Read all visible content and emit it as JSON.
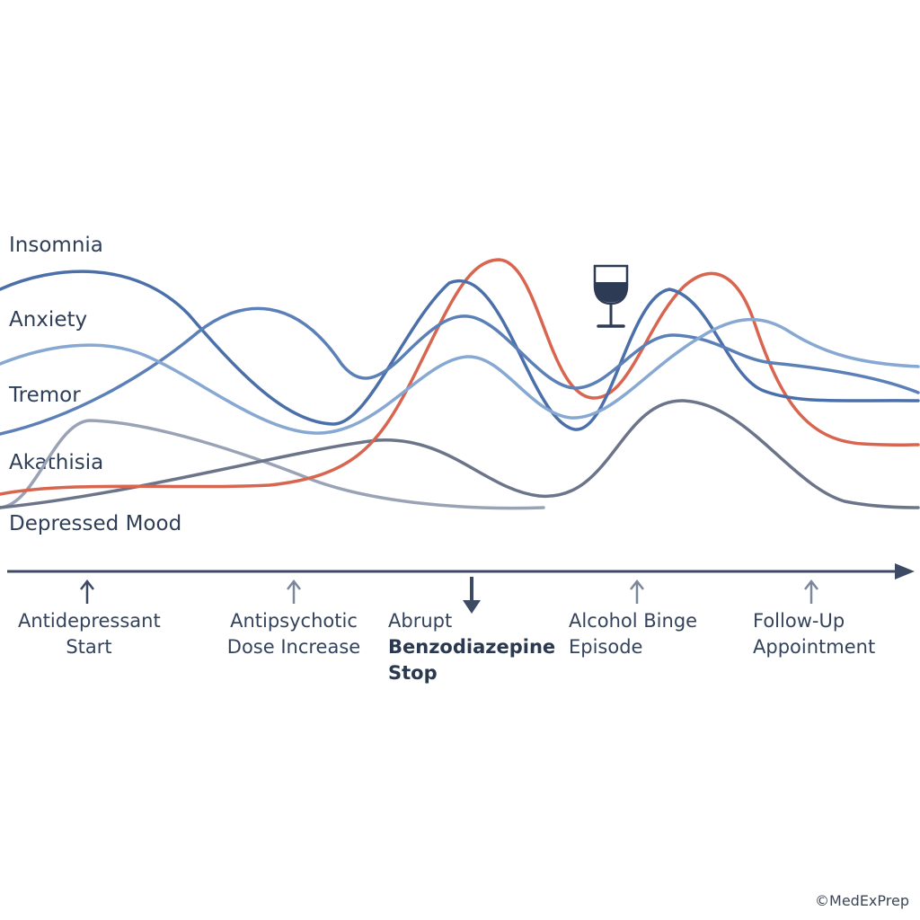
{
  "symptoms": [
    {
      "id": "insomnia",
      "label": "Insomnia"
    },
    {
      "id": "anxiety",
      "label": "Anxiety"
    },
    {
      "id": "tremor",
      "label": "Tremor"
    },
    {
      "id": "akathisia",
      "label": "Akathisia"
    },
    {
      "id": "depressed_mood",
      "label": "Depressed Mood"
    }
  ],
  "events": [
    {
      "id": "antidepressant_start",
      "lines": [
        "Antidepressant",
        "Start"
      ],
      "emphasis": false
    },
    {
      "id": "antipsychotic_dose_increase",
      "lines": [
        "Antipsychotic",
        "Dose Increase"
      ],
      "emphasis": false
    },
    {
      "id": "abrupt_benzodiazepine_stop",
      "lines": [
        "Abrupt",
        "Benzodiazepine",
        "Stop"
      ],
      "emphasis": true
    },
    {
      "id": "alcohol_binge_episode",
      "lines": [
        "Alcohol Binge",
        "Episode"
      ],
      "emphasis": false
    },
    {
      "id": "follow_up_appointment",
      "lines": [
        "Follow-Up",
        "Appointment"
      ],
      "emphasis": false
    }
  ],
  "icons": {
    "alcohol": "wine-glass-icon",
    "timeline_end": "arrowhead-right-icon",
    "event_marker": "arrow-up-icon",
    "emphasis_marker": "arrow-down-icon"
  },
  "colors": {
    "curve_red": "#d8654f",
    "curve_blue_dark": "#4a6fa9",
    "curve_blue_mid": "#5b80b8",
    "curve_blue_light": "#86a8d2",
    "curve_slate": "#6b7489",
    "curve_gray_light": "#9aa3b6",
    "axis": "#3c4a63"
  },
  "watermark": "©MedExPrep"
}
